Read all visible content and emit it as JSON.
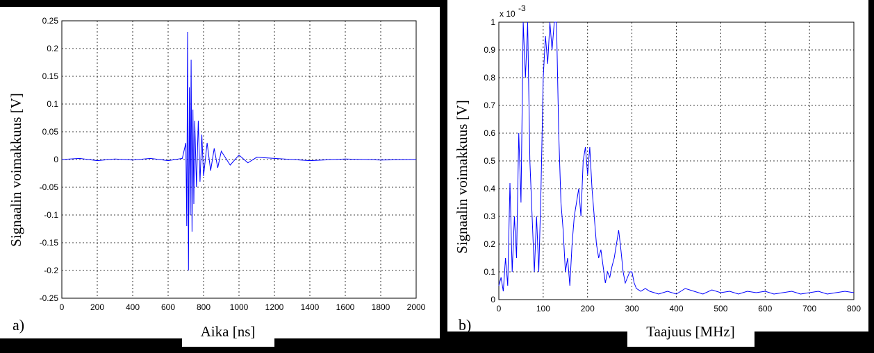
{
  "panel_labels": {
    "a": "a)",
    "b": "b)"
  },
  "chart_data": [
    {
      "type": "line",
      "panel": "a)",
      "xlabel": "Aika [ns]",
      "ylabel": "Signaalin voimakkuus [V]",
      "xlim": [
        0,
        2000
      ],
      "ylim": [
        -0.25,
        0.25
      ],
      "xticks": [
        "0",
        "200",
        "400",
        "600",
        "800",
        "1000",
        "1200",
        "1400",
        "1600",
        "1800",
        "2000"
      ],
      "yticks": [
        "0.25",
        "0.2",
        "0.15",
        "0.1",
        "0.05",
        "0",
        "-0.05",
        "-0.1",
        "-0.15",
        "-0.2",
        "-0.25"
      ],
      "grid": true,
      "line_color": "#0000ff",
      "series": [
        {
          "x": [
            0,
            100,
            200,
            300,
            400,
            500,
            600,
            680,
            700,
            705,
            710,
            715,
            720,
            725,
            730,
            735,
            740,
            745,
            750,
            760,
            770,
            780,
            790,
            800,
            820,
            840,
            860,
            880,
            900,
            950,
            1000,
            1050,
            1100,
            1200,
            1400,
            1600,
            1800,
            2000
          ],
          "y": [
            0,
            0.002,
            -0.002,
            0.001,
            -0.001,
            0.002,
            -0.002,
            0.002,
            0.03,
            -0.12,
            0.23,
            -0.2,
            0.13,
            -0.1,
            0.18,
            -0.13,
            0.09,
            -0.08,
            0.07,
            -0.05,
            0.07,
            -0.04,
            0.045,
            -0.03,
            0.03,
            -0.02,
            0.02,
            -0.015,
            0.015,
            -0.01,
            0.008,
            -0.006,
            0.004,
            0.002,
            -0.002,
            0.001,
            -0.001,
            0
          ]
        }
      ]
    },
    {
      "type": "line",
      "panel": "b)",
      "xlabel": "Taajuus [MHz]",
      "ylabel": "Signaalin voimakkuus [V]",
      "multiplier": "x 10",
      "multiplier_exp": "-3",
      "xlim": [
        0,
        800
      ],
      "ylim": [
        0,
        1
      ],
      "xticks": [
        "0",
        "100",
        "200",
        "300",
        "400",
        "500",
        "600",
        "700",
        "800"
      ],
      "yticks": [
        "1",
        "0.9",
        "0.8",
        "0.7",
        "0.6",
        "0.5",
        "0.4",
        "0.3",
        "0.2",
        "0.1",
        "0"
      ],
      "grid": true,
      "line_color": "#0000ff",
      "series": [
        {
          "x": [
            0,
            5,
            10,
            15,
            20,
            25,
            30,
            35,
            40,
            45,
            50,
            55,
            60,
            65,
            70,
            75,
            80,
            85,
            90,
            95,
            100,
            105,
            110,
            115,
            120,
            125,
            130,
            135,
            140,
            145,
            150,
            155,
            160,
            165,
            170,
            175,
            180,
            185,
            190,
            195,
            200,
            205,
            210,
            215,
            220,
            225,
            230,
            235,
            240,
            245,
            250,
            255,
            260,
            265,
            270,
            275,
            280,
            285,
            290,
            295,
            300,
            305,
            310,
            320,
            330,
            340,
            360,
            380,
            400,
            420,
            440,
            460,
            480,
            500,
            520,
            540,
            560,
            580,
            600,
            620,
            640,
            660,
            680,
            700,
            720,
            740,
            760,
            780,
            800
          ],
          "y": [
            0.05,
            0.08,
            0.03,
            0.15,
            0.05,
            0.42,
            0.1,
            0.3,
            0.15,
            0.6,
            0.35,
            1.0,
            0.8,
            1.0,
            0.5,
            0.3,
            0.1,
            0.3,
            0.1,
            0.4,
            0.8,
            0.95,
            0.85,
            1.0,
            0.9,
            1.0,
            1.0,
            0.6,
            0.35,
            0.25,
            0.1,
            0.15,
            0.05,
            0.2,
            0.3,
            0.35,
            0.4,
            0.3,
            0.5,
            0.55,
            0.45,
            0.55,
            0.4,
            0.3,
            0.2,
            0.15,
            0.18,
            0.12,
            0.06,
            0.1,
            0.08,
            0.12,
            0.15,
            0.2,
            0.25,
            0.18,
            0.1,
            0.06,
            0.08,
            0.1,
            0.1,
            0.06,
            0.04,
            0.03,
            0.04,
            0.03,
            0.02,
            0.03,
            0.02,
            0.04,
            0.03,
            0.02,
            0.035,
            0.025,
            0.03,
            0.02,
            0.03,
            0.025,
            0.03,
            0.02,
            0.025,
            0.03,
            0.02,
            0.025,
            0.03,
            0.02,
            0.025,
            0.03,
            0.025
          ]
        }
      ]
    }
  ]
}
